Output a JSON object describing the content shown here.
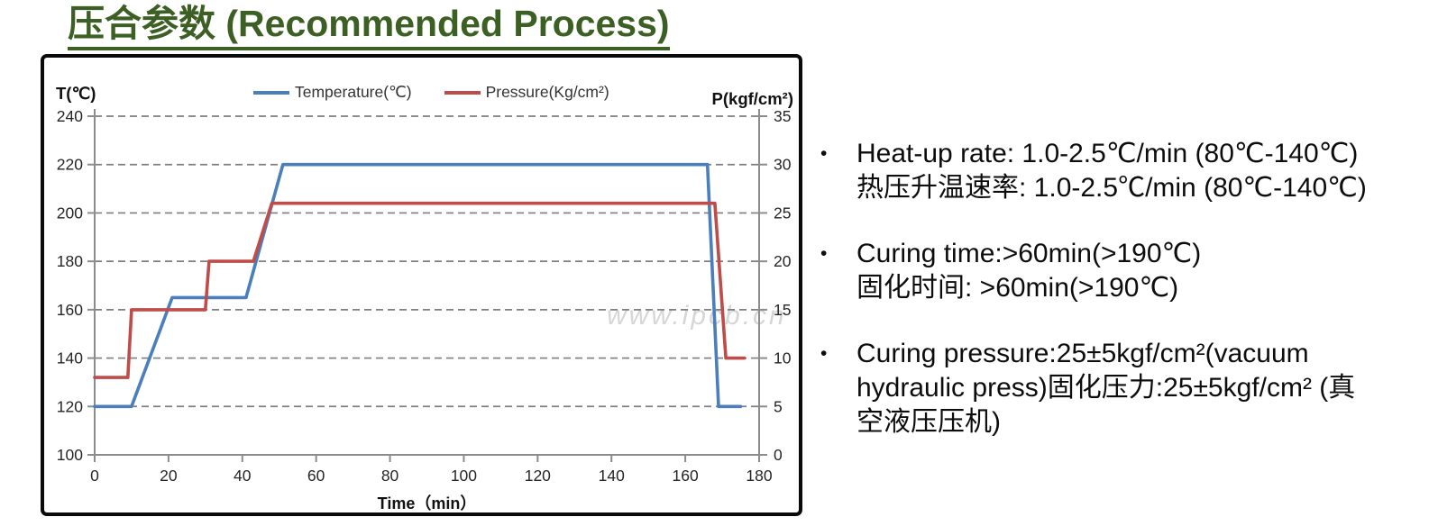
{
  "page": {
    "title": "压合参数 (Recommended Process)"
  },
  "watermark": "www.ipcb.cn",
  "notes": {
    "bullet": "•",
    "items": [
      {
        "text": "Heat-up rate: 1.0-2.5℃/min (80℃-140℃)\n热压升温速率: 1.0-2.5℃/min (80℃-140℃)"
      },
      {
        "text": "Curing time:>60min(>190℃)\n固化时间: >60min(>190℃)"
      },
      {
        "text": "Curing pressure:25±5kgf/cm²(vacuum\nhydraulic press)固化压力:25±5kgf/cm² (真\n空液压压机)"
      }
    ]
  },
  "chart_data": {
    "type": "line",
    "title": "",
    "x_axis": {
      "label": "Time（min）",
      "min": 0,
      "max": 180,
      "ticks": [
        0,
        20,
        40,
        60,
        80,
        100,
        120,
        140,
        160,
        180
      ]
    },
    "y_left": {
      "label": "T(℃)",
      "min": 100,
      "max": 240,
      "ticks": [
        240,
        220,
        200,
        180,
        160,
        140,
        120,
        100
      ]
    },
    "y_right": {
      "label": "P(kgf/cm²)",
      "min": 0,
      "max": 35,
      "ticks": [
        35,
        30,
        25,
        20,
        15,
        10,
        5,
        0
      ]
    },
    "grid": {
      "style": "dashed-horizontal",
      "color": "#7F7F7F"
    },
    "legend": {
      "position": "top-center"
    },
    "series": [
      {
        "id": "temperature",
        "name": "Temperature(℃)",
        "axis": "left",
        "unit": "℃",
        "color": "#4A7EBC",
        "points": [
          [
            0,
            120
          ],
          [
            10,
            120
          ],
          [
            21,
            165
          ],
          [
            41,
            165
          ],
          [
            51,
            220
          ],
          [
            166,
            220
          ],
          [
            169,
            120
          ],
          [
            175,
            120
          ]
        ]
      },
      {
        "id": "pressure",
        "name": "Pressure(Kg/cm²)",
        "axis": "right",
        "unit": "kgf/cm²",
        "color": "#BF4C49",
        "points": [
          [
            0,
            8
          ],
          [
            9,
            8
          ],
          [
            10,
            15
          ],
          [
            30,
            15
          ],
          [
            31,
            20
          ],
          [
            43,
            20
          ],
          [
            48,
            26
          ],
          [
            168,
            26
          ],
          [
            171,
            10
          ],
          [
            176,
            10
          ]
        ]
      }
    ]
  },
  "colors": {
    "title_green": "#3C5F24",
    "grid_gray": "#7F7F7F",
    "axis_gray": "#8C8C8C",
    "tick_label": "#262626",
    "panel_border": "#0A0A0A"
  }
}
